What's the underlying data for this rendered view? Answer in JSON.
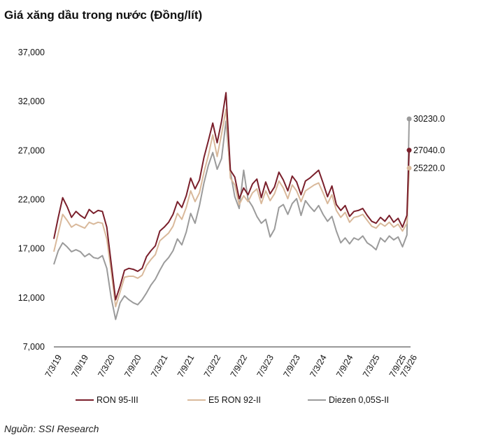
{
  "chart_data": {
    "type": "line",
    "title": "Giá xăng dầu trong nước (Đồng/lít)",
    "source": "Nguồn: SSI Research",
    "ylim": [
      7000,
      37000
    ],
    "yticks": [
      "7,000",
      "12,000",
      "17,000",
      "22,000",
      "27,000",
      "32,000",
      "37,000"
    ],
    "ytick_values": [
      7000,
      12000,
      17000,
      22000,
      27000,
      32000,
      37000
    ],
    "xlim": [
      0,
      80.5
    ],
    "xticks": [
      "7/3/19",
      "7/9/19",
      "7/3/20",
      "7/9/20",
      "7/3/21",
      "7/9/21",
      "7/3/22",
      "7/9/22",
      "7/3/23",
      "7/9/23",
      "7/3/24",
      "7/9/24",
      "7/3/25",
      "7/9/25",
      "7/3/26"
    ],
    "xtick_values": [
      0,
      6,
      12,
      18,
      24,
      30,
      36,
      42,
      48,
      54,
      60,
      66,
      72,
      78,
      80.5
    ],
    "series": [
      {
        "name": "RON 95-III",
        "color": "#7a1f2b",
        "end_label": "27040.0",
        "x": [
          0,
          1,
          2,
          3,
          4,
          5,
          6,
          7,
          8,
          9,
          10,
          11,
          12,
          13,
          14,
          15,
          16,
          17,
          18,
          19,
          20,
          21,
          22,
          23,
          24,
          25,
          26,
          27,
          28,
          29,
          30,
          31,
          32,
          33,
          34,
          35,
          36,
          37,
          38,
          39,
          40,
          41,
          42,
          43,
          44,
          45,
          46,
          47,
          48,
          49,
          50,
          51,
          52,
          53,
          54,
          55,
          56,
          57,
          58,
          59,
          60,
          61,
          62,
          63,
          64,
          65,
          66,
          67,
          68,
          69,
          70,
          71,
          72,
          73,
          74,
          75,
          76,
          77,
          78,
          79,
          80,
          80.5
        ],
        "values": [
          18000,
          20200,
          22200,
          21300,
          20200,
          20800,
          20400,
          20100,
          21000,
          20600,
          20900,
          20800,
          19200,
          15500,
          11800,
          13200,
          14800,
          15000,
          14900,
          14700,
          15000,
          16200,
          16800,
          17300,
          18800,
          19200,
          19700,
          20500,
          21800,
          21200,
          22400,
          24200,
          23100,
          24000,
          26300,
          28000,
          29800,
          27800,
          30000,
          32900,
          25000,
          24300,
          22100,
          23200,
          22500,
          23600,
          24100,
          22200,
          23800,
          22600,
          23300,
          24800,
          24000,
          22900,
          24400,
          23800,
          22500,
          23900,
          24200,
          24600,
          25000,
          23700,
          22300,
          23400,
          21500,
          20900,
          21400,
          20300,
          20800,
          20900,
          21100,
          20400,
          19800,
          19600,
          20200,
          19800,
          20400,
          19700,
          20100,
          19200,
          20400,
          27040
        ]
      },
      {
        "name": "E5 RON 92-II",
        "color": "#d9b99b",
        "end_label": "25220.0",
        "x": [
          0,
          1,
          2,
          3,
          4,
          5,
          6,
          7,
          8,
          9,
          10,
          11,
          12,
          13,
          14,
          15,
          16,
          17,
          18,
          19,
          20,
          21,
          22,
          23,
          24,
          25,
          26,
          27,
          28,
          29,
          30,
          31,
          32,
          33,
          34,
          35,
          36,
          37,
          38,
          39,
          40,
          41,
          42,
          43,
          44,
          45,
          46,
          47,
          48,
          49,
          50,
          51,
          52,
          53,
          54,
          55,
          56,
          57,
          58,
          59,
          60,
          61,
          62,
          63,
          64,
          65,
          66,
          67,
          68,
          69,
          70,
          71,
          72,
          73,
          74,
          75,
          76,
          77,
          78,
          79,
          80,
          80.5
        ],
        "values": [
          16700,
          18600,
          20500,
          19900,
          19200,
          19500,
          19300,
          19100,
          19700,
          19500,
          19700,
          19600,
          18000,
          14700,
          11100,
          12600,
          14100,
          14200,
          14200,
          14000,
          14300,
          15300,
          15900,
          16400,
          17800,
          18200,
          18600,
          19300,
          20600,
          20000,
          21200,
          22900,
          21800,
          22700,
          24800,
          26500,
          28600,
          26400,
          28700,
          31200,
          24200,
          23500,
          21500,
          22400,
          21800,
          22700,
          23100,
          21600,
          22900,
          21900,
          22600,
          23900,
          23200,
          22100,
          23500,
          22900,
          21800,
          22900,
          23200,
          23500,
          23700,
          22700,
          21600,
          22500,
          20900,
          20200,
          20700,
          19700,
          20200,
          20300,
          20500,
          19900,
          19300,
          19100,
          19600,
          19300,
          19700,
          19200,
          19500,
          18800,
          19600,
          25220
        ]
      },
      {
        "name": "Diezen 0,05S-II",
        "color": "#9b9b9b",
        "end_label": "30230.0",
        "x": [
          0,
          1,
          2,
          3,
          4,
          5,
          6,
          7,
          8,
          9,
          10,
          11,
          12,
          13,
          14,
          15,
          16,
          17,
          18,
          19,
          20,
          21,
          22,
          23,
          24,
          25,
          26,
          27,
          28,
          29,
          30,
          31,
          32,
          33,
          34,
          35,
          36,
          37,
          38,
          39,
          40,
          41,
          42,
          43,
          44,
          45,
          46,
          47,
          48,
          49,
          50,
          51,
          52,
          53,
          54,
          55,
          56,
          57,
          58,
          59,
          60,
          61,
          62,
          63,
          64,
          65,
          66,
          67,
          68,
          69,
          70,
          71,
          72,
          73,
          74,
          75,
          76,
          77,
          78,
          79,
          80,
          80.5
        ],
        "values": [
          15400,
          16800,
          17600,
          17200,
          16700,
          16900,
          16700,
          16200,
          16500,
          16100,
          16000,
          16300,
          15000,
          12000,
          9800,
          11500,
          12200,
          11800,
          11500,
          11300,
          11800,
          12500,
          13300,
          13900,
          14800,
          15600,
          16100,
          16800,
          18000,
          17400,
          18700,
          20600,
          19600,
          21400,
          23700,
          25500,
          26800,
          25100,
          26200,
          30000,
          24800,
          22300,
          21100,
          25000,
          22000,
          21300,
          20300,
          19600,
          20000,
          18200,
          19000,
          21200,
          21500,
          20500,
          21600,
          22100,
          20400,
          21900,
          21300,
          20800,
          21400,
          20500,
          19800,
          20300,
          18800,
          17600,
          18100,
          17500,
          18100,
          17900,
          18300,
          17600,
          17300,
          16900,
          18100,
          17700,
          18300,
          17900,
          18200,
          17200,
          18400,
          30230
        ]
      }
    ]
  }
}
